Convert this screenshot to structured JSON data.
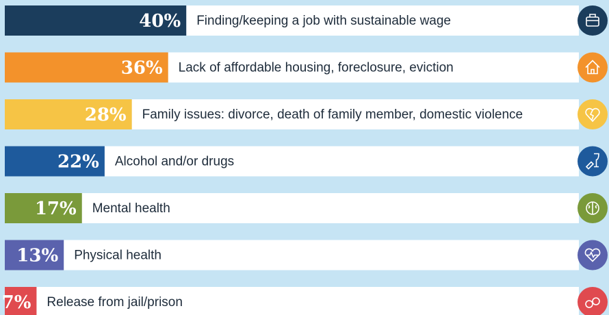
{
  "chart_data": {
    "type": "bar",
    "orientation": "horizontal",
    "categories": [
      "Finding/keeping a job with sustainable wage",
      "Lack of affordable housing, foreclosure, eviction",
      "Family issues: divorce, death of family member, domestic violence",
      "Alcohol and/or drugs",
      "Mental health",
      "Physical health",
      "Release from jail/prison"
    ],
    "values": [
      40,
      36,
      28,
      22,
      17,
      13,
      7
    ],
    "value_labels": [
      "40%",
      "36%",
      "28%",
      "22%",
      "17%",
      "13%",
      "7%"
    ],
    "colors": [
      "#1b3d5c",
      "#f3922b",
      "#f6c445",
      "#1e5a9c",
      "#7a9a3a",
      "#5a62ad",
      "#e04a4f"
    ],
    "xlim": [
      0,
      100
    ]
  }
}
